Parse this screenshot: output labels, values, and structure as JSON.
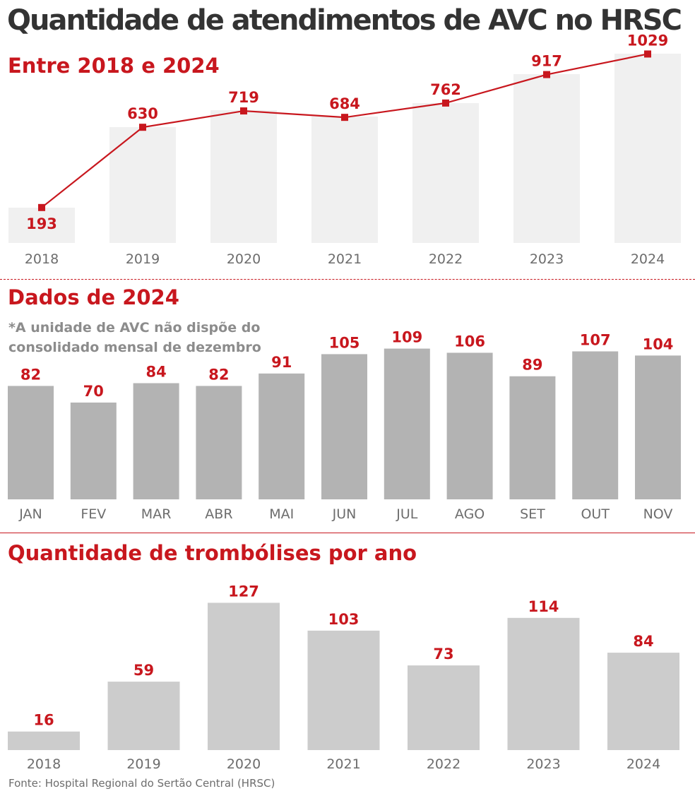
{
  "title": "Quantidade de atendimentos de AVC no HRSC",
  "source": "Fonte: Hospital Regional do Sertão Central (HRSC)",
  "colors": {
    "accent": "#c8171e",
    "title": "#333333",
    "bg_bar": "#f0f0f0",
    "bar_dark": "#b3b3b3",
    "bar_light": "#cccccc",
    "axis_text": "#6d6d6d"
  },
  "sections": {
    "s1": {
      "title": "Entre 2018 e 2024"
    },
    "s2": {
      "title": "Dados de 2024",
      "note_line1": "*A unidade de AVC não dispõe do",
      "note_line2": "consolidado mensal de dezembro"
    },
    "s3": {
      "title": "Quantidade de trombólises por ano"
    }
  },
  "chart_data": [
    {
      "type": "line",
      "title": "Entre 2018 e 2024",
      "categories": [
        "2018",
        "2019",
        "2020",
        "2021",
        "2022",
        "2023",
        "2024"
      ],
      "values": [
        193,
        630,
        719,
        684,
        762,
        917,
        1029
      ],
      "ylim": [
        0,
        1150
      ],
      "grid": false
    },
    {
      "type": "bar",
      "title": "Dados de 2024",
      "categories": [
        "JAN",
        "FEV",
        "MAR",
        "ABR",
        "MAI",
        "JUN",
        "JUL",
        "AGO",
        "SET",
        "OUT",
        "NOV"
      ],
      "values": [
        82,
        70,
        84,
        82,
        91,
        105,
        109,
        106,
        89,
        107,
        104
      ],
      "ylim": [
        0,
        150
      ],
      "grid": false
    },
    {
      "type": "bar",
      "title": "Quantidade de trombólises por ano",
      "categories": [
        "2018",
        "2019",
        "2020",
        "2021",
        "2022",
        "2023",
        "2024"
      ],
      "values": [
        16,
        59,
        127,
        103,
        73,
        114,
        84
      ],
      "ylim": [
        0,
        150
      ],
      "grid": false
    }
  ]
}
